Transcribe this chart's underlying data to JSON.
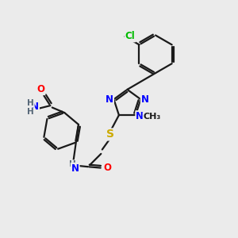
{
  "bg_color": "#ebebeb",
  "bond_color": "#1a1a1a",
  "atom_colors": {
    "N": "#0000ff",
    "O": "#ff0000",
    "S": "#ccaa00",
    "Cl": "#00bb00",
    "C": "#1a1a1a",
    "H": "#556677"
  },
  "font_size": 8.5,
  "lw": 1.6
}
